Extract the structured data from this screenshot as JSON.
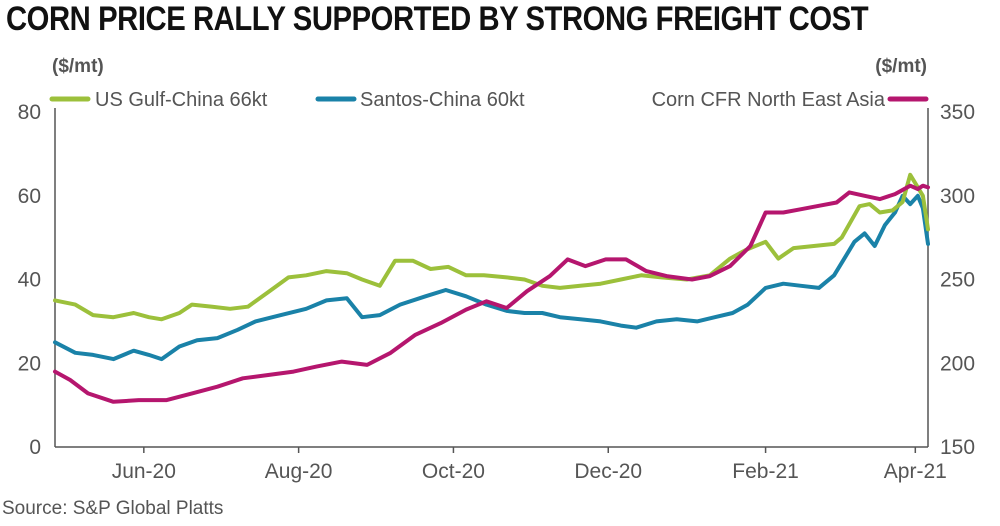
{
  "title": "CORN PRICE RALLY SUPPORTED BY STRONG FREIGHT COST",
  "source": "Source: S&P Global Platts",
  "colors": {
    "us_gulf": "#9cc03b",
    "santos": "#1a82a8",
    "corn": "#b5166e",
    "axis": "#555555"
  },
  "chart_data": {
    "type": "line",
    "left_axis": {
      "unit": "($/mt)",
      "ylim": [
        0,
        80
      ],
      "ticks": [
        "0",
        "20",
        "40",
        "60",
        "80"
      ]
    },
    "right_axis": {
      "unit": "($/mt)",
      "ylim": [
        150,
        350
      ],
      "ticks": [
        "150",
        "200",
        "250",
        "300",
        "350"
      ]
    },
    "x_ticks": [
      "Jun-20",
      "Aug-20",
      "Oct-20",
      "Dec-20",
      "Feb-21",
      "Apr-21"
    ],
    "x_range": [
      "2020-04-27",
      "2021-04-06"
    ],
    "legend": [
      "US Gulf-China 66kt",
      "Santos-China 60kt",
      "Corn CFR North East Asia"
    ],
    "series": [
      {
        "name": "US Gulf-China 66kt",
        "axis": "left",
        "color": "#9cc03b",
        "points": [
          [
            "2020-04-27",
            35
          ],
          [
            "2020-05-05",
            34
          ],
          [
            "2020-05-12",
            31.5
          ],
          [
            "2020-05-20",
            31
          ],
          [
            "2020-05-28",
            32
          ],
          [
            "2020-06-03",
            31
          ],
          [
            "2020-06-08",
            30.5
          ],
          [
            "2020-06-15",
            32
          ],
          [
            "2020-06-20",
            34
          ],
          [
            "2020-06-28",
            33.5
          ],
          [
            "2020-07-05",
            33
          ],
          [
            "2020-07-12",
            33.5
          ],
          [
            "2020-07-20",
            37
          ],
          [
            "2020-07-28",
            40.5
          ],
          [
            "2020-08-04",
            41
          ],
          [
            "2020-08-12",
            42
          ],
          [
            "2020-08-20",
            41.5
          ],
          [
            "2020-08-26",
            40
          ],
          [
            "2020-09-02",
            38.5
          ],
          [
            "2020-09-08",
            44.5
          ],
          [
            "2020-09-15",
            44.5
          ],
          [
            "2020-09-22",
            42.5
          ],
          [
            "2020-09-29",
            43
          ],
          [
            "2020-10-06",
            41
          ],
          [
            "2020-10-13",
            41
          ],
          [
            "2020-10-22",
            40.5
          ],
          [
            "2020-10-29",
            40
          ],
          [
            "2020-11-05",
            38.5
          ],
          [
            "2020-11-12",
            38
          ],
          [
            "2020-11-20",
            38.5
          ],
          [
            "2020-11-28",
            39
          ],
          [
            "2020-12-06",
            40
          ],
          [
            "2020-12-14",
            41
          ],
          [
            "2020-12-22",
            40.5
          ],
          [
            "2021-01-01",
            40
          ],
          [
            "2021-01-10",
            41
          ],
          [
            "2021-01-18",
            45
          ],
          [
            "2021-01-24",
            47
          ],
          [
            "2021-02-01",
            49
          ],
          [
            "2021-02-06",
            45
          ],
          [
            "2021-02-12",
            47.5
          ],
          [
            "2021-02-20",
            48
          ],
          [
            "2021-02-28",
            48.5
          ],
          [
            "2021-03-03",
            50
          ],
          [
            "2021-03-10",
            57.5
          ],
          [
            "2021-03-14",
            58
          ],
          [
            "2021-03-18",
            56
          ],
          [
            "2021-03-23",
            56.5
          ],
          [
            "2021-03-27",
            58.5
          ],
          [
            "2021-03-30",
            65
          ],
          [
            "2021-04-01",
            63
          ],
          [
            "2021-04-04",
            60
          ],
          [
            "2021-04-06",
            52
          ]
        ]
      },
      {
        "name": "Santos-China 60kt",
        "axis": "left",
        "color": "#1a82a8",
        "points": [
          [
            "2020-04-27",
            25
          ],
          [
            "2020-05-05",
            22.5
          ],
          [
            "2020-05-12",
            22
          ],
          [
            "2020-05-20",
            21
          ],
          [
            "2020-05-28",
            23
          ],
          [
            "2020-06-03",
            22
          ],
          [
            "2020-06-08",
            21
          ],
          [
            "2020-06-15",
            24
          ],
          [
            "2020-06-22",
            25.5
          ],
          [
            "2020-06-30",
            26
          ],
          [
            "2020-07-08",
            28
          ],
          [
            "2020-07-15",
            30
          ],
          [
            "2020-07-25",
            31.5
          ],
          [
            "2020-08-04",
            33
          ],
          [
            "2020-08-12",
            35
          ],
          [
            "2020-08-20",
            35.5
          ],
          [
            "2020-08-26",
            31
          ],
          [
            "2020-09-02",
            31.5
          ],
          [
            "2020-09-10",
            34
          ],
          [
            "2020-09-20",
            36
          ],
          [
            "2020-09-28",
            37.5
          ],
          [
            "2020-10-06",
            36
          ],
          [
            "2020-10-14",
            34
          ],
          [
            "2020-10-22",
            32.5
          ],
          [
            "2020-10-29",
            32
          ],
          [
            "2020-11-05",
            32
          ],
          [
            "2020-11-12",
            31
          ],
          [
            "2020-11-20",
            30.5
          ],
          [
            "2020-11-28",
            30
          ],
          [
            "2020-12-06",
            29
          ],
          [
            "2020-12-12",
            28.5
          ],
          [
            "2020-12-20",
            30
          ],
          [
            "2020-12-28",
            30.5
          ],
          [
            "2021-01-05",
            30
          ],
          [
            "2021-01-12",
            31
          ],
          [
            "2021-01-19",
            32
          ],
          [
            "2021-01-25",
            34
          ],
          [
            "2021-02-01",
            38
          ],
          [
            "2021-02-08",
            39
          ],
          [
            "2021-02-15",
            38.5
          ],
          [
            "2021-02-22",
            38
          ],
          [
            "2021-02-28",
            41
          ],
          [
            "2021-03-04",
            45
          ],
          [
            "2021-03-08",
            49
          ],
          [
            "2021-03-12",
            51
          ],
          [
            "2021-03-16",
            48
          ],
          [
            "2021-03-20",
            53
          ],
          [
            "2021-03-24",
            56
          ],
          [
            "2021-03-27",
            60
          ],
          [
            "2021-03-30",
            58
          ],
          [
            "2021-04-02",
            60
          ],
          [
            "2021-04-04",
            57
          ],
          [
            "2021-04-06",
            48.5
          ]
        ]
      },
      {
        "name": "Corn CFR North East Asia",
        "axis": "right",
        "color": "#b5166e",
        "points": [
          [
            "2020-04-27",
            195
          ],
          [
            "2020-05-03",
            190
          ],
          [
            "2020-05-10",
            182
          ],
          [
            "2020-05-20",
            177
          ],
          [
            "2020-05-30",
            178
          ],
          [
            "2020-06-10",
            178
          ],
          [
            "2020-06-20",
            182
          ],
          [
            "2020-06-30",
            186
          ],
          [
            "2020-07-10",
            191
          ],
          [
            "2020-07-20",
            193
          ],
          [
            "2020-07-30",
            195
          ],
          [
            "2020-08-08",
            198
          ],
          [
            "2020-08-18",
            201
          ],
          [
            "2020-08-28",
            199
          ],
          [
            "2020-09-06",
            206
          ],
          [
            "2020-09-16",
            217
          ],
          [
            "2020-09-26",
            224
          ],
          [
            "2020-10-06",
            232
          ],
          [
            "2020-10-14",
            237
          ],
          [
            "2020-10-22",
            233
          ],
          [
            "2020-10-30",
            243
          ],
          [
            "2020-11-08",
            252
          ],
          [
            "2020-11-15",
            262
          ],
          [
            "2020-11-22",
            258
          ],
          [
            "2020-11-30",
            262
          ],
          [
            "2020-12-08",
            262
          ],
          [
            "2020-12-16",
            255
          ],
          [
            "2020-12-24",
            252
          ],
          [
            "2021-01-03",
            250
          ],
          [
            "2021-01-10",
            252
          ],
          [
            "2021-01-18",
            258
          ],
          [
            "2021-01-26",
            270
          ],
          [
            "2021-02-01",
            290
          ],
          [
            "2021-02-08",
            290
          ],
          [
            "2021-02-15",
            292
          ],
          [
            "2021-02-22",
            294
          ],
          [
            "2021-03-01",
            296
          ],
          [
            "2021-03-06",
            302
          ],
          [
            "2021-03-12",
            300
          ],
          [
            "2021-03-18",
            298
          ],
          [
            "2021-03-24",
            301
          ],
          [
            "2021-03-30",
            306
          ],
          [
            "2021-04-02",
            304
          ],
          [
            "2021-04-04",
            306
          ],
          [
            "2021-04-06",
            305
          ]
        ]
      }
    ]
  }
}
